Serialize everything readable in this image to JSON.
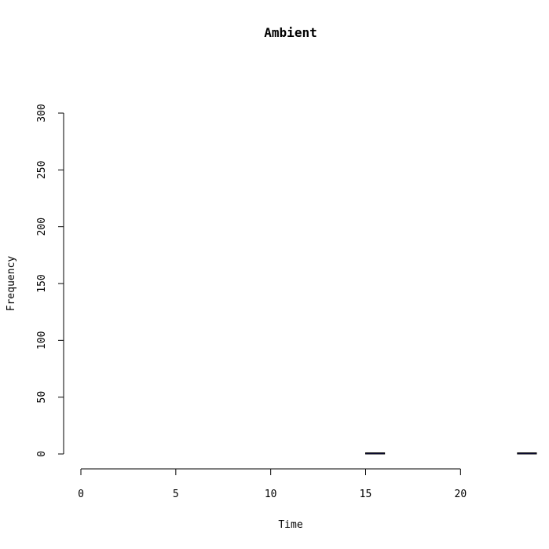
{
  "chart_data": {
    "type": "bar",
    "title": "Ambient",
    "xlabel": "Time",
    "ylabel": "Frequency",
    "xlim": [
      0,
      24
    ],
    "ylim": [
      0,
      300
    ],
    "x_ticks": [
      0,
      5,
      10,
      15,
      20
    ],
    "y_ticks": [
      0,
      50,
      100,
      150,
      200,
      250,
      300
    ],
    "bin_width": 1,
    "bins": [
      {
        "x0": 0,
        "x1": 1,
        "value": 0
      },
      {
        "x0": 1,
        "x1": 2,
        "value": 0
      },
      {
        "x0": 2,
        "x1": 3,
        "value": 0
      },
      {
        "x0": 3,
        "x1": 4,
        "value": 0
      },
      {
        "x0": 4,
        "x1": 5,
        "value": 0
      },
      {
        "x0": 5,
        "x1": 6,
        "value": 0
      },
      {
        "x0": 6,
        "x1": 7,
        "value": 0
      },
      {
        "x0": 7,
        "x1": 8,
        "value": 0
      },
      {
        "x0": 8,
        "x1": 9,
        "value": 0
      },
      {
        "x0": 9,
        "x1": 10,
        "value": 0
      },
      {
        "x0": 10,
        "x1": 11,
        "value": 0
      },
      {
        "x0": 11,
        "x1": 12,
        "value": 0
      },
      {
        "x0": 12,
        "x1": 13,
        "value": 0
      },
      {
        "x0": 13,
        "x1": 14,
        "value": 0
      },
      {
        "x0": 14,
        "x1": 15,
        "value": 0
      },
      {
        "x0": 15,
        "x1": 16,
        "value": 1
      },
      {
        "x0": 16,
        "x1": 17,
        "value": 0
      },
      {
        "x0": 17,
        "x1": 18,
        "value": 0
      },
      {
        "x0": 18,
        "x1": 19,
        "value": 0
      },
      {
        "x0": 19,
        "x1": 20,
        "value": 0
      },
      {
        "x0": 20,
        "x1": 21,
        "value": 0
      },
      {
        "x0": 21,
        "x1": 22,
        "value": 0
      },
      {
        "x0": 22,
        "x1": 23,
        "value": 0
      },
      {
        "x0": 23,
        "x1": 24,
        "value": 1
      }
    ],
    "bar_fill": "#191970",
    "bar_stroke": "#000000",
    "grid": false,
    "legend": "none"
  }
}
